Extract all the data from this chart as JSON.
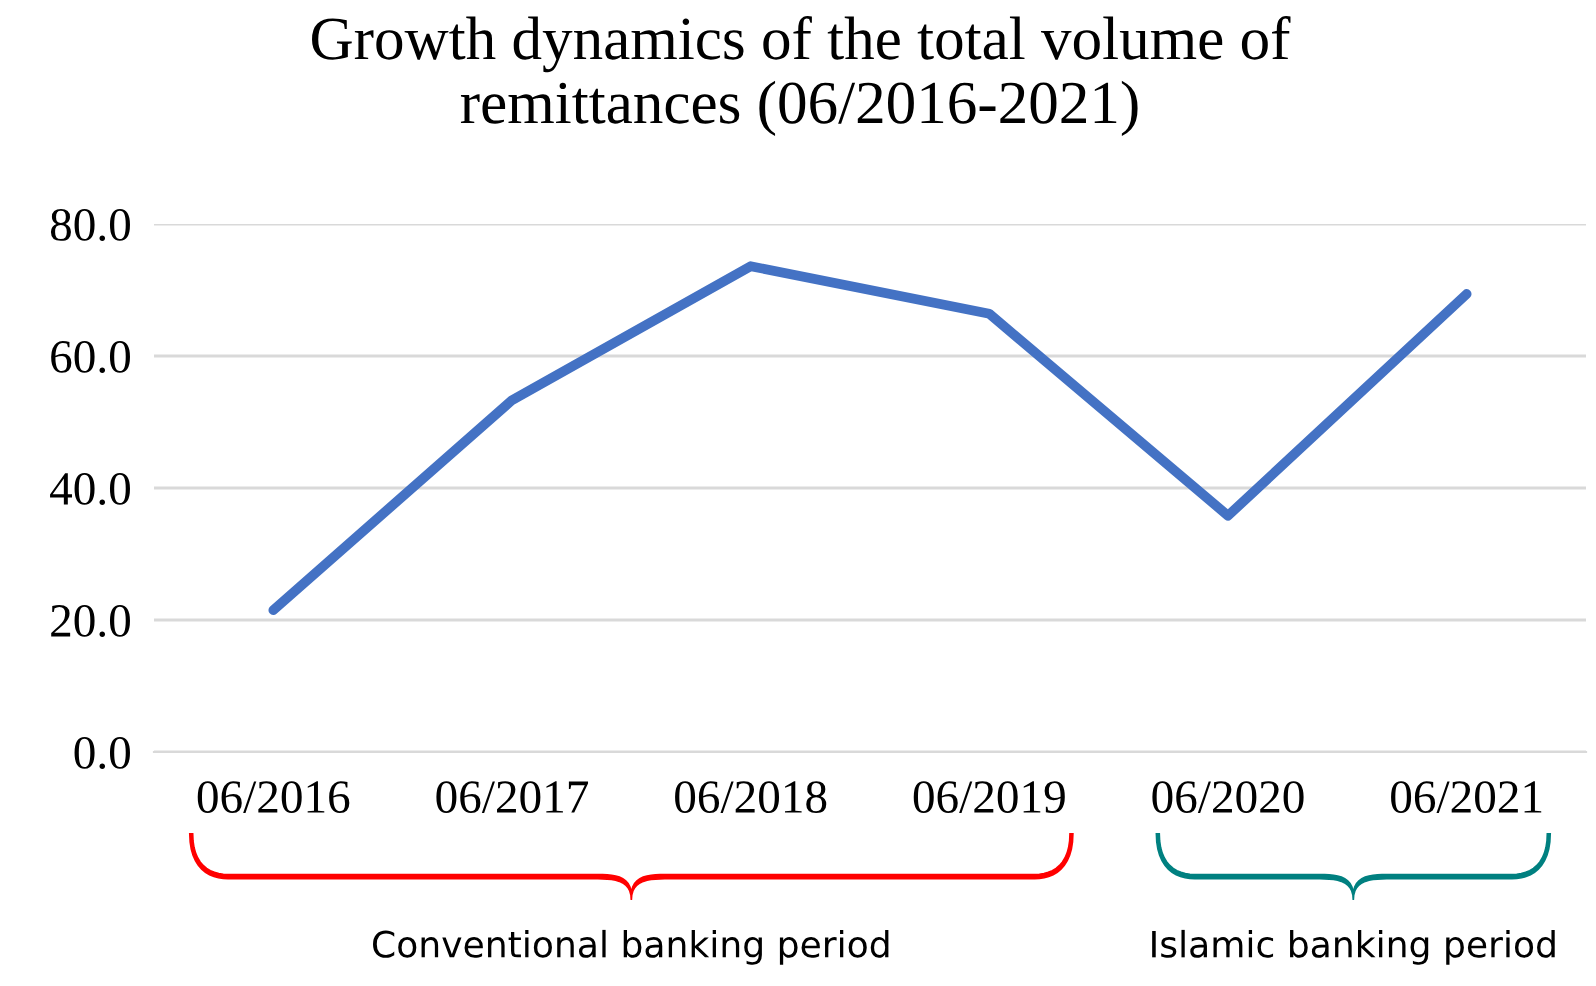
{
  "chart_data": {
    "type": "line",
    "title": "Growth dynamics of the total volume of remittances (06/2016-2021)",
    "categories": [
      "06/2016",
      "06/2017",
      "06/2018",
      "06/2019",
      "06/2020",
      "06/2021"
    ],
    "series": [
      {
        "color": "#4472c4",
        "values": [
          21.5,
          53.3,
          73.6,
          66.4,
          35.8,
          69.4
        ]
      }
    ],
    "ylim": [
      0,
      80
    ],
    "yticks": [
      {
        "value": 0,
        "label": "0.0"
      },
      {
        "value": 20,
        "label": "20.0"
      },
      {
        "value": 40,
        "label": "40.0"
      },
      {
        "value": 60,
        "label": "60.0"
      },
      {
        "value": 80,
        "label": "80.0"
      }
    ],
    "grid": "y",
    "marker": "none",
    "line_style": "solid",
    "annotations": [
      "Conventional banking period",
      "Islamic banking period"
    ]
  }
}
